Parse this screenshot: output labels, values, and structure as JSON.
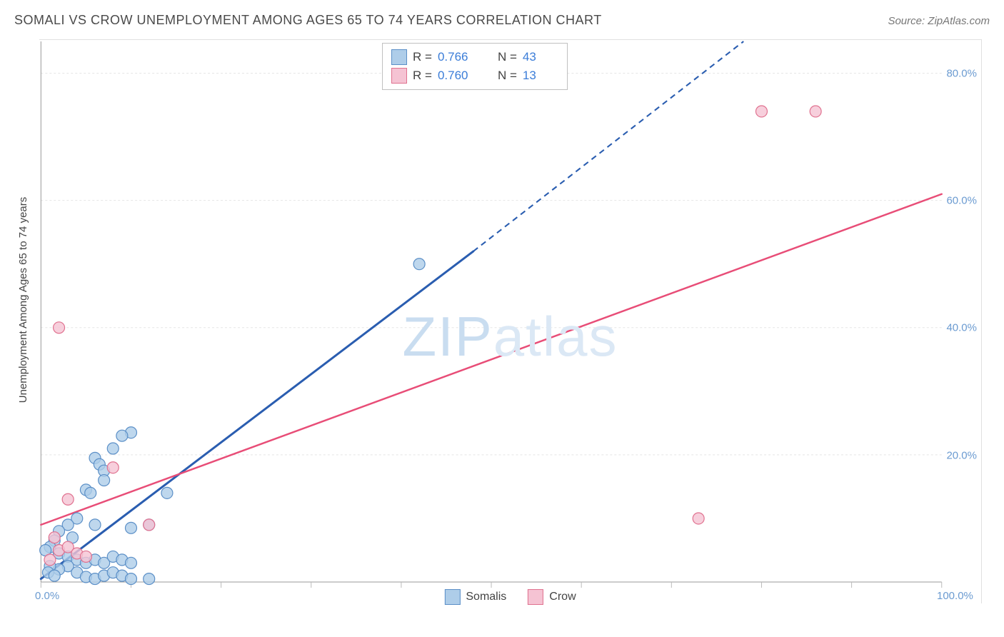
{
  "header": {
    "title": "SOMALI VS CROW UNEMPLOYMENT AMONG AGES 65 TO 74 YEARS CORRELATION CHART",
    "source": "Source: ZipAtlas.com"
  },
  "watermark": {
    "left": "ZIP",
    "right": "atlas"
  },
  "axes": {
    "ylabel": "Unemployment Among Ages 65 to 74 years",
    "x": {
      "min": 0,
      "max": 100,
      "ticks": [
        0,
        10,
        20,
        30,
        40,
        50,
        60,
        70,
        80,
        90,
        100
      ],
      "labels": [
        {
          "v": 0,
          "t": "0.0%"
        },
        {
          "v": 100,
          "t": "100.0%"
        }
      ]
    },
    "y": {
      "min": 0,
      "max": 85,
      "grid": [
        20,
        40,
        60,
        80
      ],
      "labels": [
        {
          "v": 20,
          "t": "20.0%"
        },
        {
          "v": 40,
          "t": "40.0%"
        },
        {
          "v": 60,
          "t": "60.0%"
        },
        {
          "v": 80,
          "t": "80.0%"
        }
      ]
    },
    "label_color": "#6b9bd1",
    "grid_color": "#e5e5e5",
    "tick_color": "#bbbbbb"
  },
  "stats_box": {
    "rows": [
      {
        "swatch_fill": "#aecde9",
        "swatch_stroke": "#5b8fc7",
        "r": "0.766",
        "n": "43"
      },
      {
        "swatch_fill": "#f5c3d3",
        "swatch_stroke": "#e0718f",
        "r": "0.760",
        "n": "13"
      }
    ],
    "r_label": "R =",
    "n_label": "N ="
  },
  "legend": {
    "series": [
      {
        "name": "Somalis",
        "fill": "#aecde9",
        "stroke": "#5b8fc7"
      },
      {
        "name": "Crow",
        "fill": "#f5c3d3",
        "stroke": "#e0718f"
      }
    ]
  },
  "chart": {
    "marker_radius": 8,
    "marker_opacity": 0.85,
    "series": [
      {
        "name": "Somalis",
        "fill": "#aecde9cc",
        "stroke": "#5b8fc7",
        "trend": {
          "color": "#2a5db0",
          "width": 3,
          "solid": [
            [
              0,
              0.5
            ],
            [
              48,
              52
            ]
          ],
          "dashed": [
            [
              48,
              52
            ],
            [
              78,
              85
            ]
          ]
        },
        "points": [
          [
            42,
            50
          ],
          [
            10,
            23.5
          ],
          [
            9,
            23
          ],
          [
            8,
            21
          ],
          [
            6,
            19.5
          ],
          [
            6.5,
            18.5
          ],
          [
            7,
            17.5
          ],
          [
            7,
            16
          ],
          [
            5,
            14.5
          ],
          [
            5.5,
            14
          ],
          [
            14,
            14
          ],
          [
            12,
            9
          ],
          [
            10,
            8.5
          ],
          [
            6,
            9
          ],
          [
            4,
            10
          ],
          [
            3,
            9
          ],
          [
            3.5,
            7
          ],
          [
            2,
            8
          ],
          [
            1.5,
            6.5
          ],
          [
            1,
            5.5
          ],
          [
            0.5,
            5
          ],
          [
            2,
            4.5
          ],
          [
            3,
            4
          ],
          [
            4,
            3.5
          ],
          [
            5,
            3
          ],
          [
            6,
            3.5
          ],
          [
            7,
            3
          ],
          [
            8,
            4
          ],
          [
            9,
            3.5
          ],
          [
            10,
            3
          ],
          [
            3,
            2.5
          ],
          [
            2,
            2
          ],
          [
            1,
            2.5
          ],
          [
            0.8,
            1.5
          ],
          [
            1.5,
            1
          ],
          [
            4,
            1.5
          ],
          [
            5,
            0.8
          ],
          [
            6,
            0.5
          ],
          [
            7,
            1
          ],
          [
            8,
            1.5
          ],
          [
            9,
            1
          ],
          [
            10,
            0.5
          ],
          [
            12,
            0.5
          ]
        ]
      },
      {
        "name": "Crow",
        "fill": "#f5c3d3cc",
        "stroke": "#e0718f",
        "trend": {
          "color": "#e84d77",
          "width": 2.5,
          "solid": [
            [
              0,
              9
            ],
            [
              100,
              61
            ]
          ],
          "dashed": null
        },
        "points": [
          [
            80,
            74
          ],
          [
            86,
            74
          ],
          [
            73,
            10
          ],
          [
            2,
            40
          ],
          [
            8,
            18
          ],
          [
            3,
            13
          ],
          [
            1.5,
            7
          ],
          [
            2,
            5
          ],
          [
            3,
            5.5
          ],
          [
            4,
            4.5
          ],
          [
            5,
            4
          ],
          [
            12,
            9
          ],
          [
            1,
            3.5
          ]
        ]
      }
    ]
  }
}
